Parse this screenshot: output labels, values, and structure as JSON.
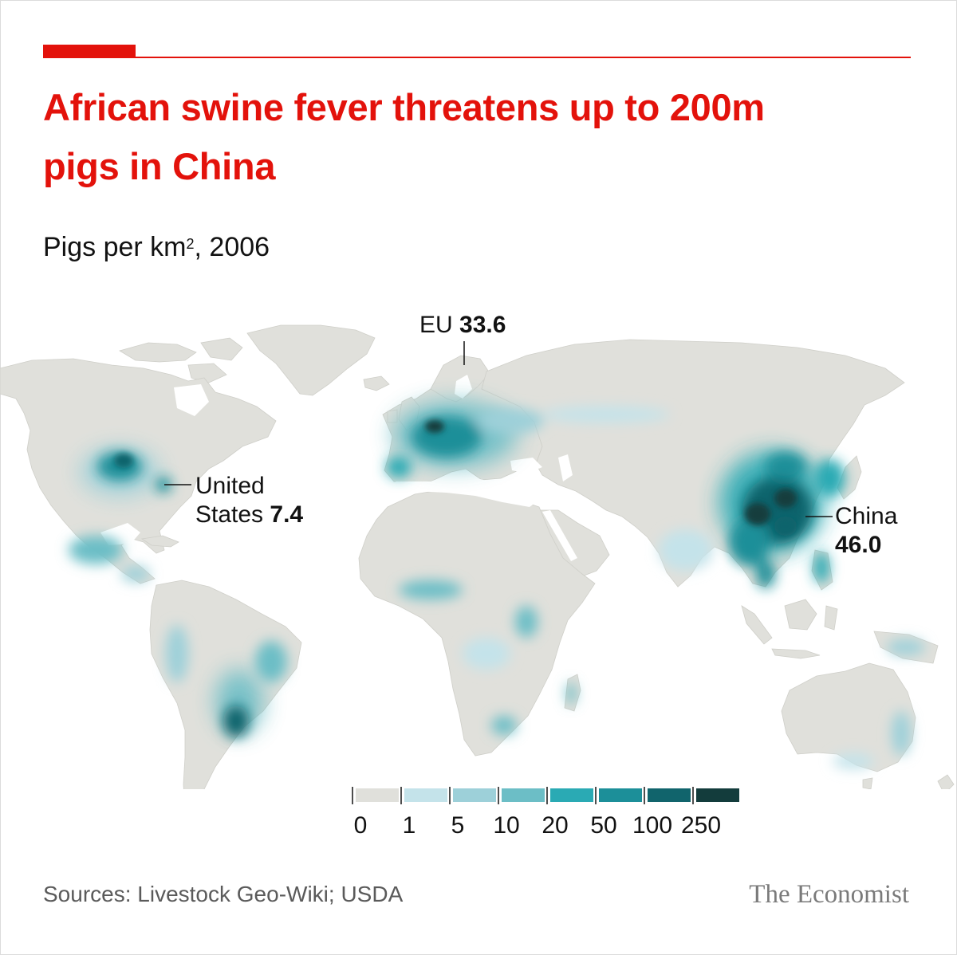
{
  "title": "African swine fever threatens up to 200m pigs in China",
  "subtitle_main": "Pigs per km",
  "subtitle_sup": "2",
  "subtitle_year": ", 2006",
  "annotations": {
    "eu": {
      "name": "EU",
      "value": "33.6"
    },
    "us": {
      "name_line1": "United",
      "name_line2": "States",
      "value": "7.4"
    },
    "china": {
      "name": "China",
      "value": "46.0"
    }
  },
  "legend": {
    "ticks": [
      "0",
      "1",
      "5",
      "10",
      "20",
      "50",
      "100",
      "250"
    ],
    "colors": [
      "#e0e0db",
      "#c4e3ea",
      "#9dd0d9",
      "#6cbec6",
      "#2aaab4",
      "#1c8f99",
      "#11646c",
      "#133c3c"
    ]
  },
  "colors": {
    "land": "#e0e0db",
    "accent_red": "#e3120b"
  },
  "source": "Sources: Livestock Geo-Wiki; USDA",
  "brand": "The Economist"
}
